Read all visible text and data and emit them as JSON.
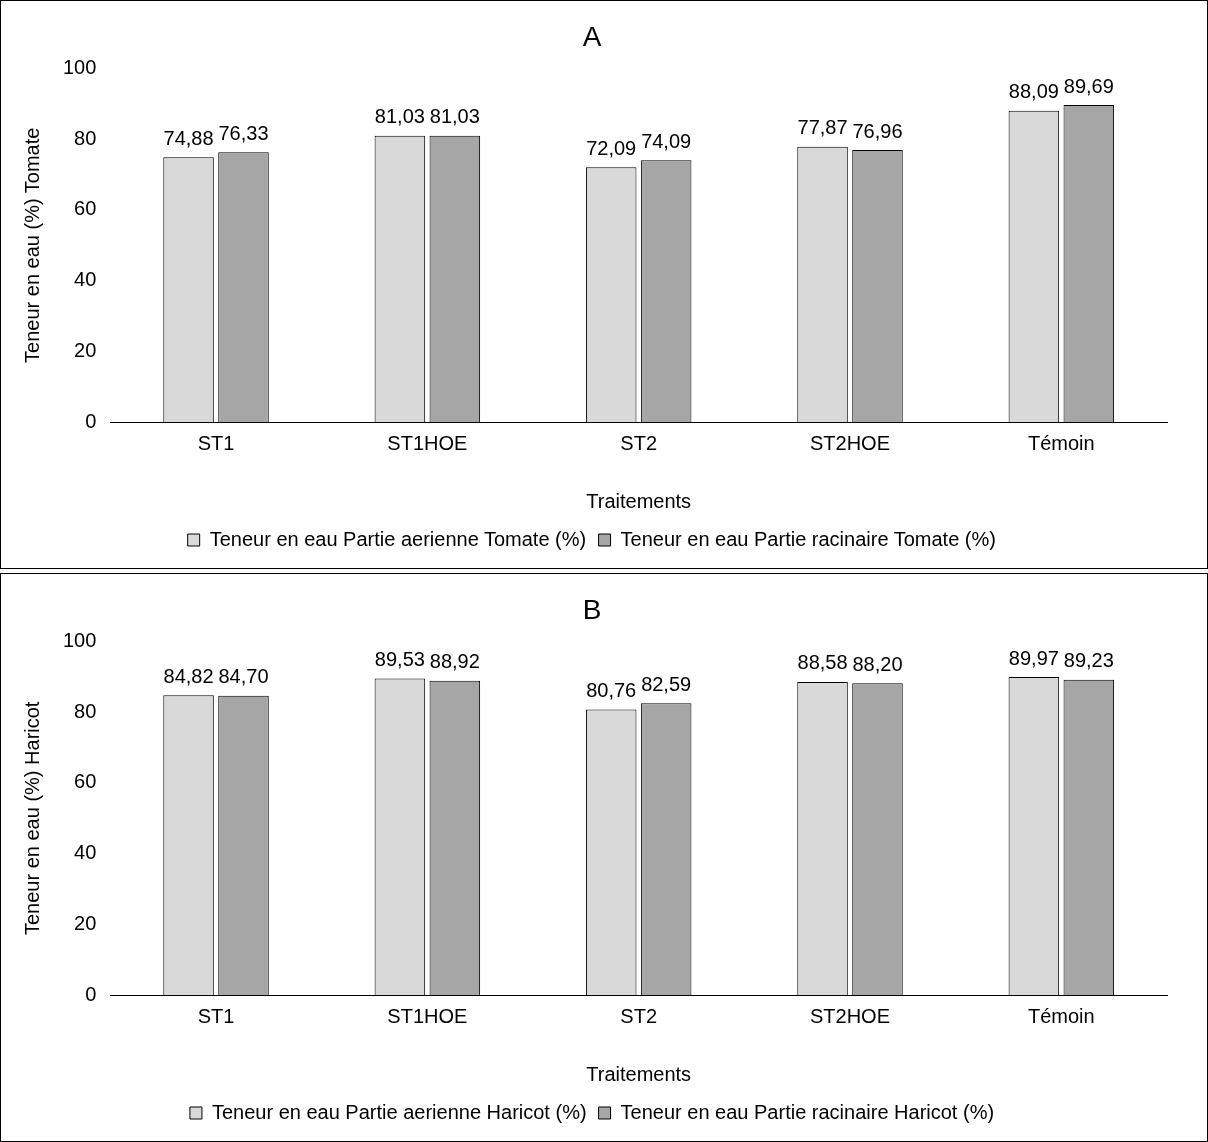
{
  "chart_data": [
    {
      "type": "bar",
      "title": "A",
      "xlabel": "Traitements",
      "ylabel": "Teneur en eau (%) Tomate",
      "categories": [
        "ST1",
        "ST1HOE",
        "ST2",
        "ST2HOE",
        "Témoin"
      ],
      "series": [
        {
          "name": "Teneur en eau Partie aerienne Tomate (%)",
          "color": "#d9d9d9",
          "values": [
            74.88,
            81.03,
            72.09,
            77.87,
            88.09
          ],
          "value_labels": [
            "74,88",
            "81,03",
            "72,09",
            "77,87",
            "88,09"
          ]
        },
        {
          "name": "Teneur en eau Partie racinaire Tomate (%)",
          "color": "#a6a6a6",
          "values": [
            76.33,
            81.03,
            74.09,
            76.96,
            89.69
          ],
          "value_labels": [
            "76,33",
            "81,03",
            "74,09",
            "76,96",
            "89,69"
          ]
        }
      ],
      "ylim": [
        0,
        100
      ],
      "yticks": [
        0,
        20,
        40,
        60,
        80,
        100
      ],
      "grid": false,
      "legend": "bottom"
    },
    {
      "type": "bar",
      "title": "B",
      "xlabel": "Traitements",
      "ylabel": "Teneur en eau (%) Haricot",
      "categories": [
        "ST1",
        "ST1HOE",
        "ST2",
        "ST2HOE",
        "Témoin"
      ],
      "series": [
        {
          "name": "Teneur en eau Partie aerienne Haricot (%)",
          "color": "#d9d9d9",
          "values": [
            84.82,
            89.53,
            80.76,
            88.58,
            89.97
          ],
          "value_labels": [
            "84,82",
            "89,53",
            "80,76",
            "88,58",
            "89,97"
          ]
        },
        {
          "name": "Teneur en eau Partie racinaire Haricot (%)",
          "color": "#a6a6a6",
          "values": [
            84.7,
            88.92,
            82.59,
            88.2,
            89.23
          ],
          "value_labels": [
            "84,70",
            "88,92",
            "82,59",
            "88,20",
            "89,23"
          ]
        }
      ],
      "ylim": [
        0,
        100
      ],
      "yticks": [
        0,
        20,
        40,
        60,
        80,
        100
      ],
      "grid": false,
      "legend": "bottom"
    }
  ]
}
